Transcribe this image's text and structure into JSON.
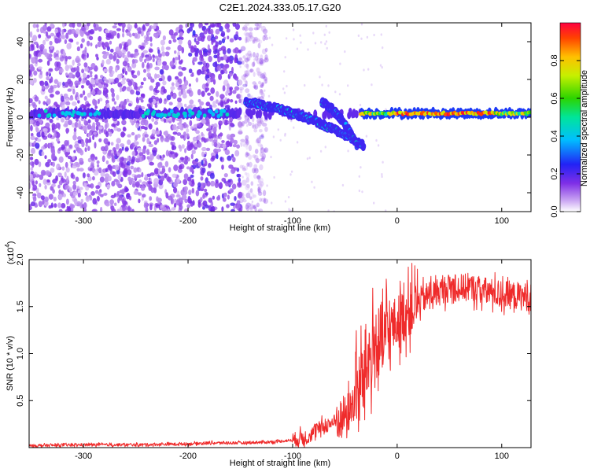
{
  "page": {
    "title": "C2E1.2024.333.05.17.G20"
  },
  "chart_data": [
    {
      "type": "heatmap",
      "title": "C2E1.2024.333.05.17.G20",
      "xlabel": "Height of straight line (km)",
      "ylabel": "Frequency (Hz)",
      "xlim": [
        -352,
        128
      ],
      "ylim": [
        -50,
        50
      ],
      "x_ticks": [
        -300,
        -200,
        -100,
        0,
        100
      ],
      "y_ticks": [
        -40,
        -20,
        0,
        20,
        40
      ],
      "grid": false,
      "colorbar": {
        "label": "Normalized spectral amplitude",
        "range": [
          0,
          1
        ],
        "ticks": [
          0.0,
          0.2,
          0.4,
          0.6,
          0.8
        ],
        "tick_labels": [
          "0.0",
          "0.2",
          "0.4",
          "0.6",
          "0.8"
        ],
        "colormap": "rainbow (white-violet-blue-cyan-green-yellow-red)"
      },
      "features": [
        {
          "name": "central carrier",
          "x": [
            -352,
            128
          ],
          "freq_hz": 2,
          "amplitude": "0.2-0.9"
        },
        {
          "name": "drifting carrier",
          "x": [
            -145,
            -32
          ],
          "freq_hz": [
            8,
            -15
          ],
          "amplitude": "0.3-0.5"
        },
        {
          "name": "secondary carrier",
          "x": [
            -72,
            -38
          ],
          "freq_hz": [
            8,
            -15
          ],
          "amplitude": "0.3-0.5"
        },
        {
          "name": "broadband noise",
          "x": [
            -352,
            -150
          ],
          "freq_hz": [
            -50,
            50
          ],
          "amplitude": "0.05-0.2"
        }
      ]
    },
    {
      "type": "line",
      "xlabel": "Height of straight line (km)",
      "ylabel": "SNR (10 * v/v)",
      "y_multiplier": "(x10^4)",
      "xlim": [
        -352,
        128
      ],
      "ylim": [
        0,
        2.0
      ],
      "x_ticks": [
        -300,
        -200,
        -100,
        0,
        100
      ],
      "y_ticks": [
        0.5,
        1.0,
        1.5,
        2.0
      ],
      "y_tick_labels": [
        "0.5",
        "1.0",
        "1.5",
        "2.0"
      ],
      "grid": false,
      "series_color": "#ef2b2b",
      "x": [
        -352,
        -300,
        -250,
        -200,
        -180,
        -150,
        -120,
        -100,
        -85,
        -75,
        -65,
        -55,
        -45,
        -38,
        -32,
        -28,
        -22,
        -15,
        -10,
        -5,
        0,
        5,
        10,
        20,
        30,
        50,
        70,
        90,
        110,
        128
      ],
      "y": [
        0.02,
        0.03,
        0.03,
        0.04,
        0.05,
        0.05,
        0.06,
        0.08,
        0.12,
        0.2,
        0.25,
        0.3,
        0.4,
        0.6,
        0.75,
        0.95,
        1.05,
        1.1,
        1.2,
        1.28,
        1.32,
        1.38,
        1.45,
        1.55,
        1.62,
        1.7,
        1.7,
        1.65,
        1.62,
        1.6
      ]
    }
  ],
  "labels": {
    "top_xlabel": "Height of straight line (km)",
    "top_ylabel": "Frequency (Hz)",
    "bottom_xlabel": "Height of straight line (km)",
    "bottom_ylabel": "SNR (10 * v/v)",
    "bottom_multiplier_base": "(x10",
    "bottom_multiplier_exp": "4",
    "bottom_multiplier_close": ")",
    "colorbar_label": "Normalized spectral amplitude"
  }
}
